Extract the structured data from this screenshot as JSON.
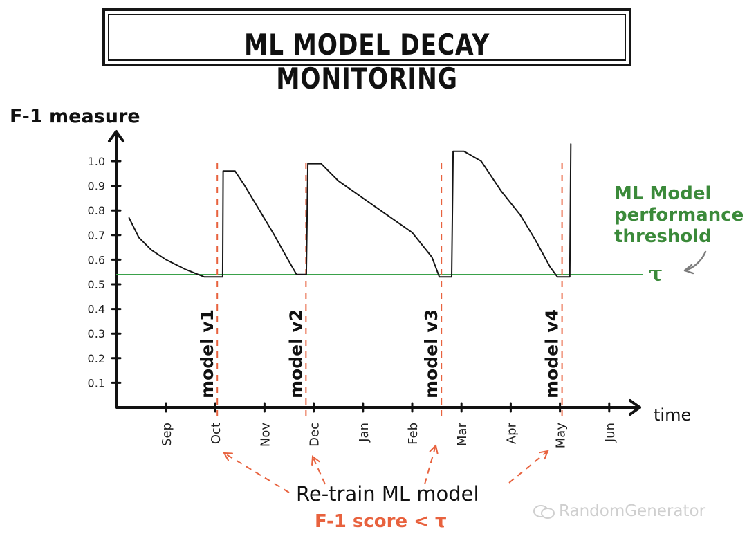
{
  "title": "ML MODEL DECAY  MONITORING",
  "watermark": "RandomGenerator",
  "annotations": {
    "threshold_label": [
      "ML Model",
      "performance",
      "threshold"
    ],
    "tau": "τ",
    "retrain": "Re-train  ML model",
    "condition": "F-1 score < τ"
  },
  "colors": {
    "line": "#151515",
    "threshold": "#3aa14a",
    "threshold_text": "#3b8a3a",
    "retrain_marker": "#e8623e",
    "condition_text": "#e8623e",
    "watermark": "#cfcfcf"
  },
  "chart_data": {
    "type": "line",
    "ylabel": "F-1 measure",
    "xlabel": "time",
    "ylim": [
      0,
      1.1
    ],
    "yticks": [
      0.1,
      0.2,
      0.3,
      0.4,
      0.5,
      0.6,
      0.7,
      0.8,
      0.9,
      1.0
    ],
    "ytick_labels": [
      "0.1",
      "0.2",
      "0.3",
      "0.4",
      "0.5",
      "0.6",
      "0.7",
      "0.8",
      "0.9",
      "1.0"
    ],
    "months": [
      "Sep",
      "Oct",
      "Nov",
      "Dec",
      "Jan",
      "Feb",
      "Mar",
      "Apr",
      "May",
      "Jun"
    ],
    "threshold": 0.54,
    "retrain_points": [
      {
        "label": "model v1",
        "month_index": 1.0
      },
      {
        "label": "model v2",
        "month_index": 2.8
      },
      {
        "label": "model v3",
        "month_index": 5.55
      },
      {
        "label": "model v4",
        "month_index": 8.0
      }
    ],
    "series": [
      {
        "values": [
          [
            -0.75,
            0.77
          ],
          [
            -0.55,
            0.69
          ],
          [
            -0.3,
            0.64
          ],
          [
            0.0,
            0.6
          ],
          [
            0.4,
            0.56
          ],
          [
            0.78,
            0.53
          ],
          [
            1.15,
            0.53
          ],
          [
            1.16,
            0.96
          ],
          [
            1.4,
            0.96
          ],
          [
            1.6,
            0.9
          ],
          [
            1.9,
            0.8
          ],
          [
            2.2,
            0.7
          ],
          [
            2.45,
            0.61
          ],
          [
            2.65,
            0.54
          ],
          [
            2.85,
            0.54
          ],
          [
            2.88,
            0.99
          ],
          [
            3.15,
            0.99
          ],
          [
            3.5,
            0.92
          ],
          [
            4.0,
            0.85
          ],
          [
            4.5,
            0.78
          ],
          [
            5.0,
            0.71
          ],
          [
            5.4,
            0.61
          ],
          [
            5.55,
            0.53
          ],
          [
            5.8,
            0.53
          ],
          [
            5.83,
            1.04
          ],
          [
            6.05,
            1.04
          ],
          [
            6.4,
            1.0
          ],
          [
            6.8,
            0.88
          ],
          [
            7.2,
            0.78
          ],
          [
            7.5,
            0.68
          ],
          [
            7.8,
            0.57
          ],
          [
            7.95,
            0.53
          ],
          [
            8.2,
            0.53
          ],
          [
            8.22,
            1.07
          ]
        ]
      }
    ]
  }
}
